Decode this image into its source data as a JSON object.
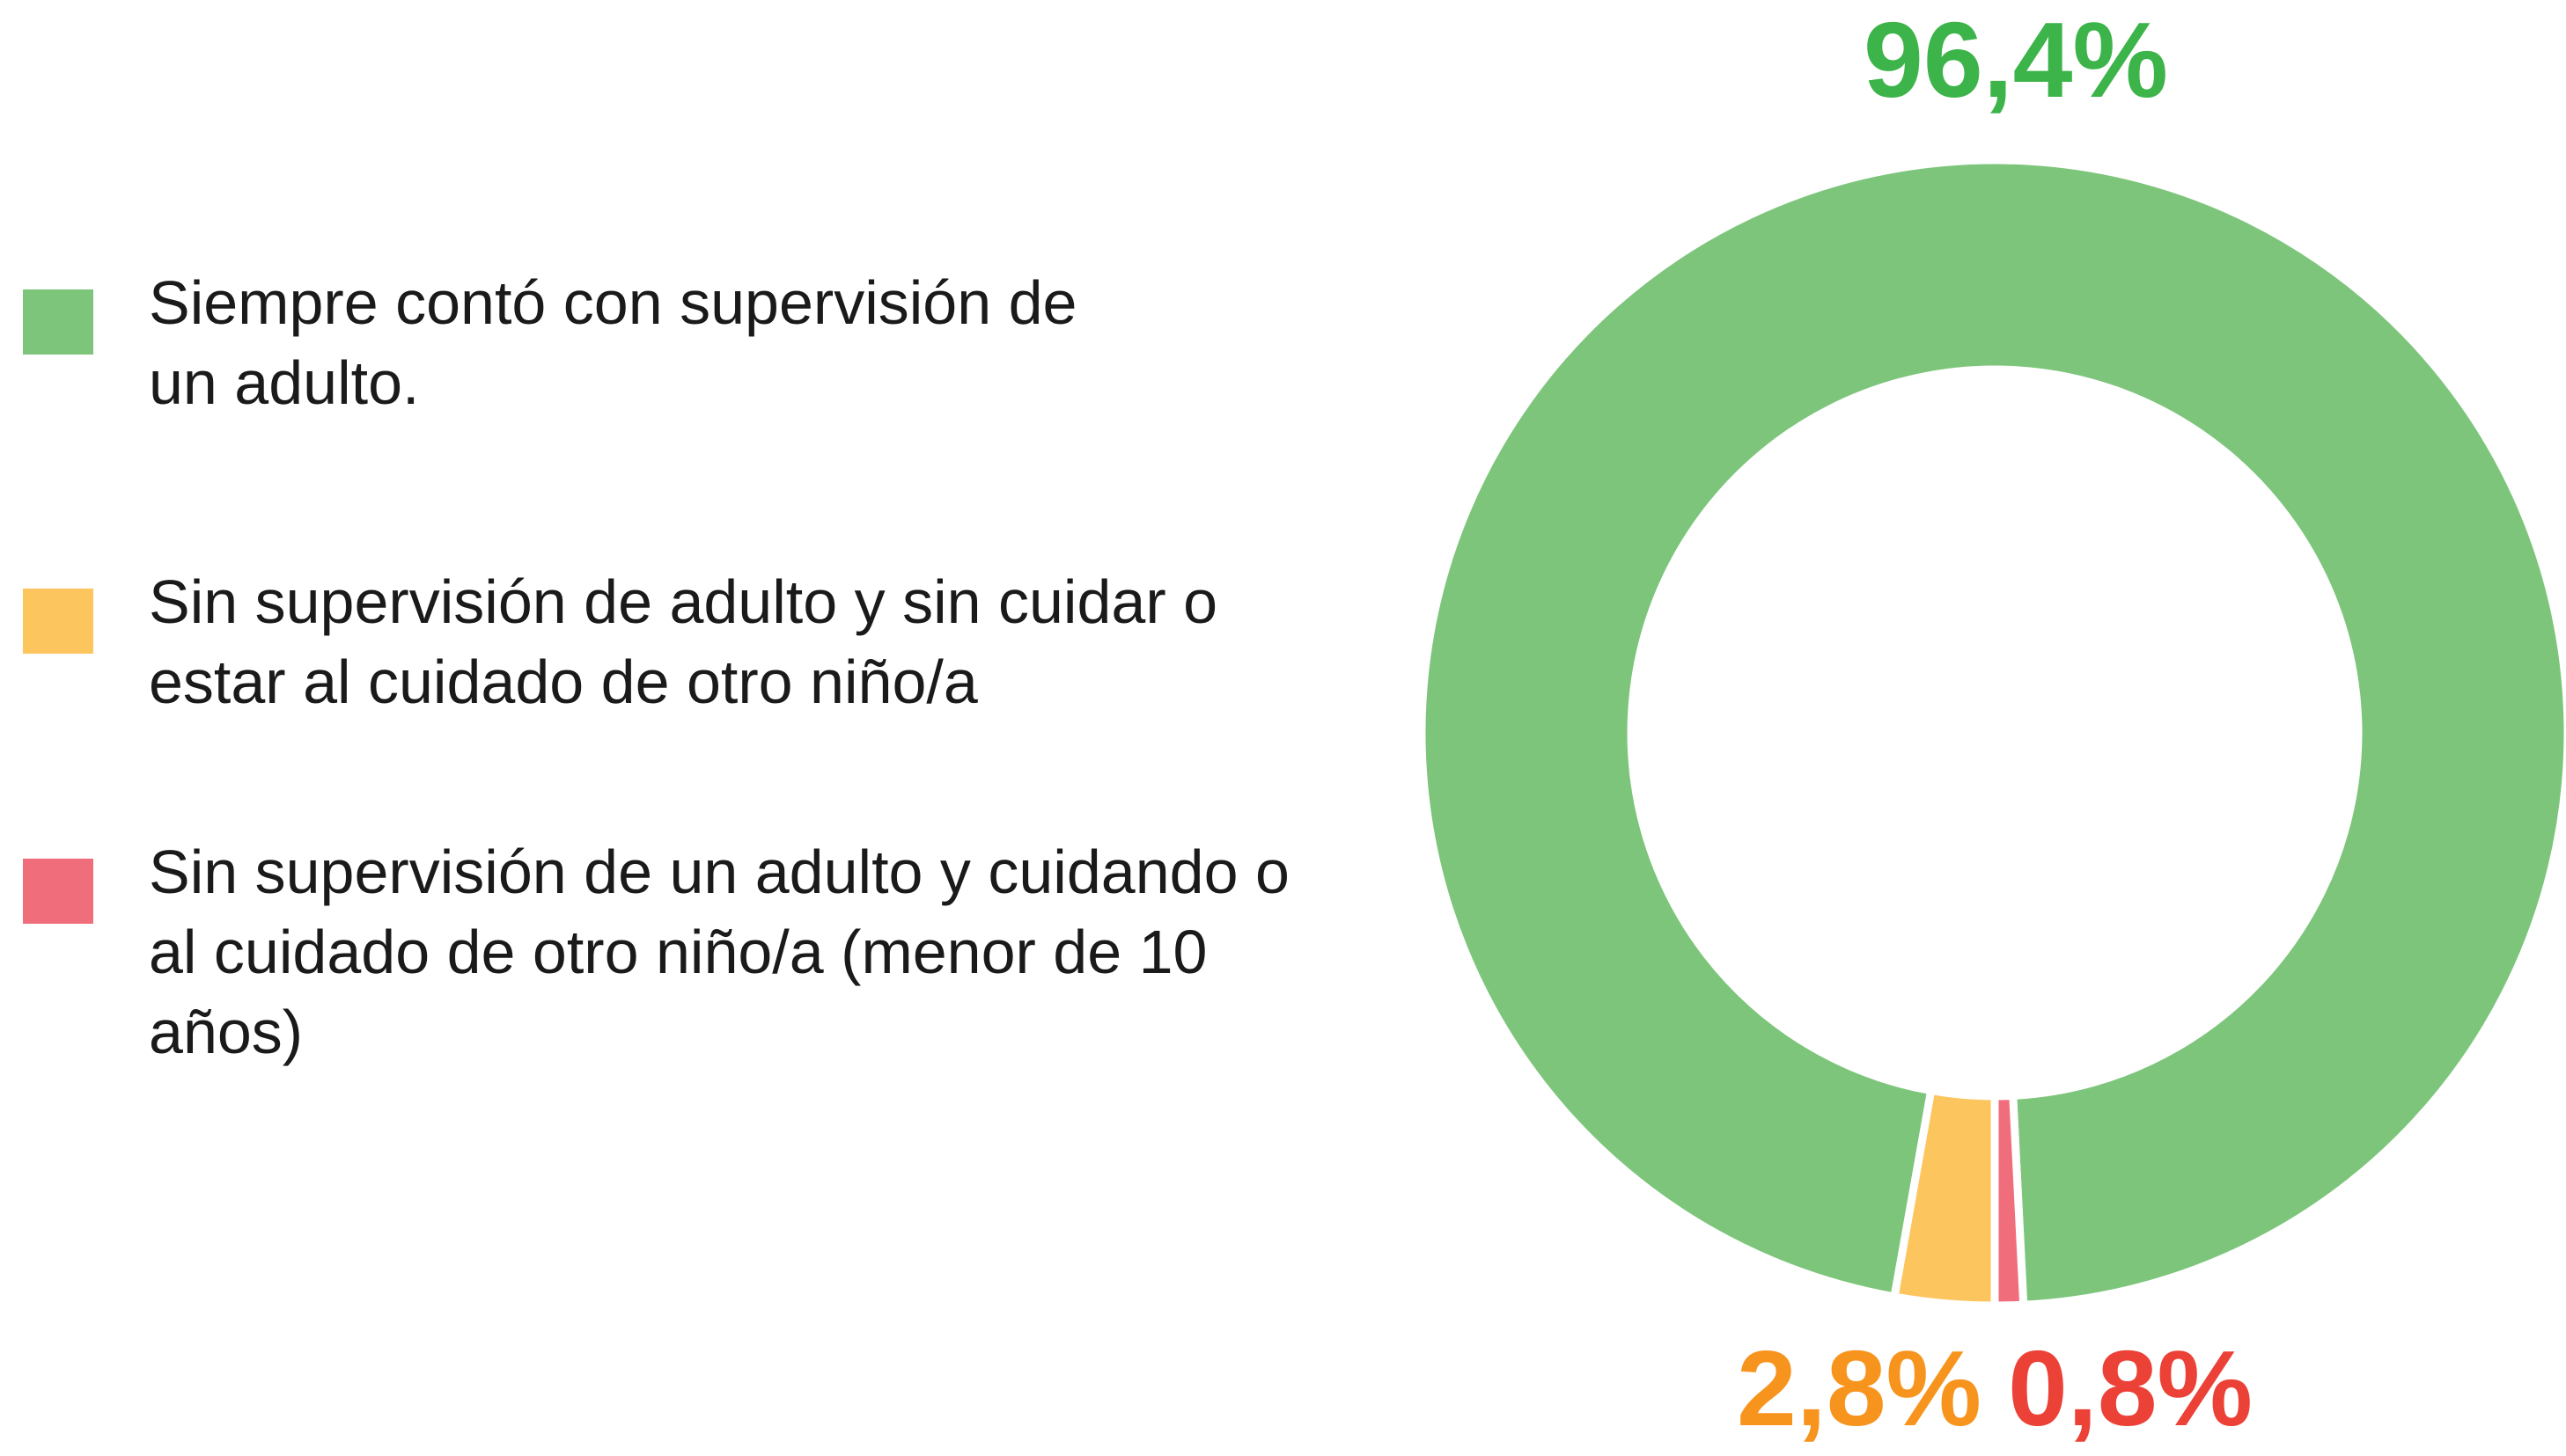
{
  "chart_data": {
    "type": "donut",
    "series": [
      {
        "name": "Siempre contó con supervisión de un adulto.",
        "color": "#7dc57b",
        "label_color": "#3cb44a",
        "values": [
          96.4
        ],
        "value_labels": [
          "96,4%"
        ]
      },
      {
        "name": "Sin supervisión de adulto y sin cuidar o estar al cuidado de otro niño/a",
        "color": "#fdc55e",
        "label_color": "#f7941d",
        "values": [
          2.8
        ],
        "value_labels": [
          "2,8%"
        ]
      },
      {
        "name": "Sin supervisión de un adulto y cuidando o al cuidado de otro niño/a (menor de 10 años)",
        "color": "#f06e7b",
        "label_color": "#ec4137",
        "values": [
          0.8
        ],
        "value_labels": [
          "0,8%"
        ]
      }
    ],
    "legend": "left"
  }
}
